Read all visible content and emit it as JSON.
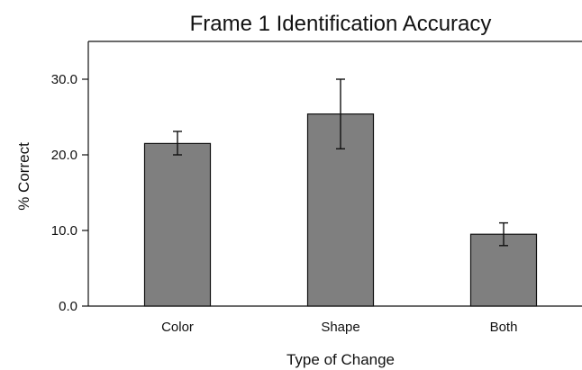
{
  "chart_data": {
    "type": "bar",
    "title": "Frame 1 Identification Accuracy",
    "xlabel": "Type of Change",
    "ylabel": "% Correct",
    "categories": [
      "Color",
      "Shape",
      "Both"
    ],
    "values": [
      21.5,
      25.4,
      9.5
    ],
    "error_low": [
      20.0,
      20.8,
      8.0
    ],
    "error_high": [
      23.1,
      30.0,
      11.0
    ],
    "ylim": [
      0,
      35
    ],
    "yticks": [
      0,
      10,
      20,
      30
    ],
    "ytick_labels": [
      "0.0",
      "10.0",
      "20.0",
      "30.0"
    ],
    "grid": false,
    "bar_color": "#7f7f7f",
    "axis_color": "#111111"
  }
}
